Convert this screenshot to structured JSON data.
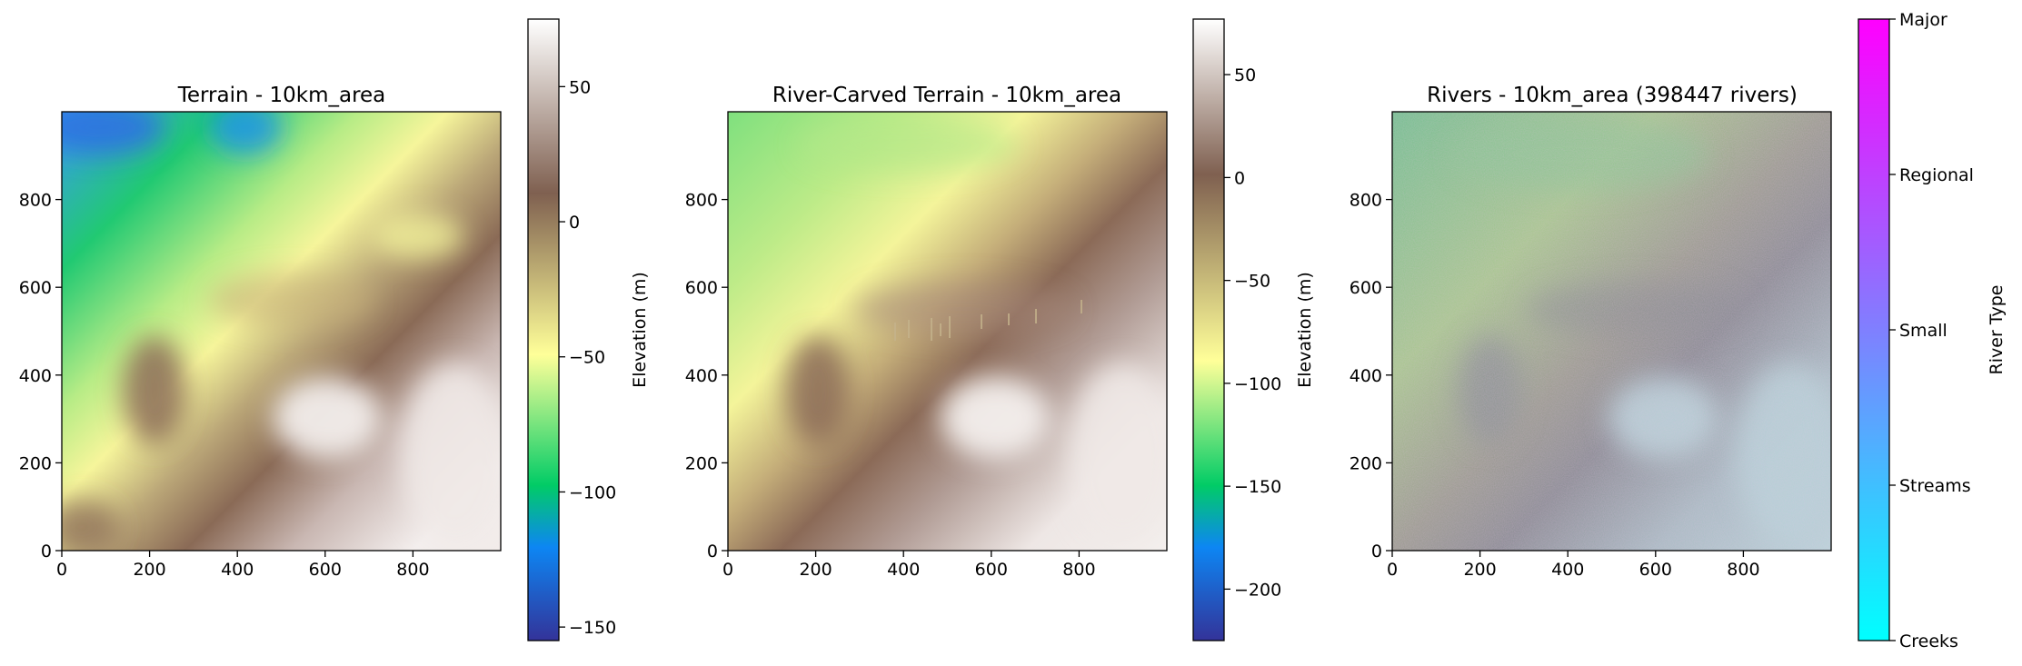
{
  "chart_data": [
    {
      "type": "heatmap",
      "title": "Terrain - 10km_area",
      "x_ticks": [
        0,
        200,
        400,
        600,
        800
      ],
      "y_ticks": [
        0,
        200,
        400,
        600,
        800
      ],
      "xlim": [
        0,
        1000
      ],
      "ylim": [
        0,
        1000
      ],
      "colormap": "terrain",
      "colorbar": {
        "label": "Elevation (m)",
        "range": [
          -155,
          75
        ],
        "ticks": [
          50,
          0,
          -50,
          -100,
          -150
        ],
        "tick_labels": [
          "50",
          "0",
          "−50",
          "−100",
          "−150"
        ]
      }
    },
    {
      "type": "heatmap",
      "title": "River-Carved Terrain - 10km_area",
      "x_ticks": [
        0,
        200,
        400,
        600,
        800
      ],
      "y_ticks": [
        0,
        200,
        400,
        600,
        800
      ],
      "xlim": [
        0,
        1000
      ],
      "ylim": [
        0,
        1000
      ],
      "colormap": "terrain",
      "colorbar": {
        "label": "Elevation (m)",
        "range": [
          -225,
          77
        ],
        "ticks": [
          50,
          0,
          -50,
          -100,
          -150,
          -200
        ],
        "tick_labels": [
          "50",
          "0",
          "−50",
          "−100",
          "−150",
          "−200"
        ]
      }
    },
    {
      "type": "heatmap",
      "title": "Rivers - 10km_area (398447 rivers)",
      "x_ticks": [
        0,
        200,
        400,
        600,
        800
      ],
      "y_ticks": [
        0,
        200,
        400,
        600,
        800
      ],
      "xlim": [
        0,
        1000
      ],
      "ylim": [
        0,
        1000
      ],
      "colormap": "cool",
      "colorbar": {
        "label": "River Type",
        "range": [
          0,
          4
        ],
        "ticks": [
          4,
          3,
          2,
          1,
          0
        ],
        "tick_labels": [
          "Major",
          "Regional",
          "Small",
          "Streams",
          "Creeks"
        ]
      }
    }
  ],
  "colors": {
    "terrain_scale": [
      "#333399",
      "#0d86f3",
      "#01cc66",
      "#ffff99",
      "#7f6050",
      "#ffffff"
    ],
    "cool_scale": [
      "#00ffff",
      "#ff00ff"
    ]
  }
}
